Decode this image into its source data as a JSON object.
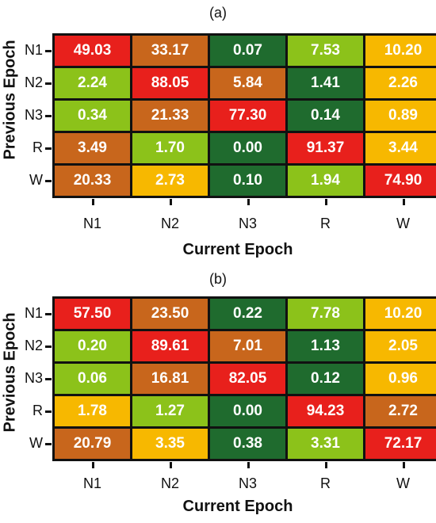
{
  "colors": {
    "red": "#e8201c",
    "orange": "#c8661c",
    "darkgreen": "#1f6b2e",
    "lightgreen": "#8cc21a",
    "yellow": "#f7b800"
  },
  "chart_data": [
    {
      "type": "heatmap",
      "panel_label": "(a)",
      "xlabel": "Current Epoch",
      "ylabel": "Previous Epoch",
      "x_categories": [
        "N1",
        "N2",
        "N3",
        "R",
        "W"
      ],
      "y_categories": [
        "N1",
        "N2",
        "N3",
        "R",
        "W"
      ],
      "values": [
        [
          49.03,
          33.17,
          0.07,
          7.53,
          10.2
        ],
        [
          2.24,
          88.05,
          5.84,
          1.41,
          2.26
        ],
        [
          0.34,
          21.33,
          77.3,
          0.14,
          0.89
        ],
        [
          3.49,
          1.7,
          0.0,
          91.37,
          3.44
        ],
        [
          20.33,
          2.73,
          0.1,
          1.94,
          74.9
        ]
      ],
      "labels": [
        [
          "49.03",
          "33.17",
          "0.07",
          "7.53",
          "10.20"
        ],
        [
          "2.24",
          "88.05",
          "5.84",
          "1.41",
          "2.26"
        ],
        [
          "0.34",
          "21.33",
          "77.30",
          "0.14",
          "0.89"
        ],
        [
          "3.49",
          "1.70",
          "0.00",
          "91.37",
          "3.44"
        ],
        [
          "20.33",
          "2.73",
          "0.10",
          "1.94",
          "74.90"
        ]
      ],
      "cell_colors": [
        [
          "red",
          "orange",
          "darkgreen",
          "lightgreen",
          "yellow"
        ],
        [
          "lightgreen",
          "red",
          "orange",
          "darkgreen",
          "yellow"
        ],
        [
          "lightgreen",
          "orange",
          "red",
          "darkgreen",
          "yellow"
        ],
        [
          "orange",
          "lightgreen",
          "darkgreen",
          "red",
          "yellow"
        ],
        [
          "orange",
          "yellow",
          "darkgreen",
          "lightgreen",
          "red"
        ]
      ]
    },
    {
      "type": "heatmap",
      "panel_label": "(b)",
      "xlabel": "Current Epoch",
      "ylabel": "Previous Epoch",
      "x_categories": [
        "N1",
        "N2",
        "N3",
        "R",
        "W"
      ],
      "y_categories": [
        "N1",
        "N2",
        "N3",
        "R",
        "W"
      ],
      "values": [
        [
          57.5,
          23.5,
          0.22,
          7.78,
          10.2
        ],
        [
          0.2,
          89.61,
          7.01,
          1.13,
          2.05
        ],
        [
          0.06,
          16.81,
          82.05,
          0.12,
          0.96
        ],
        [
          1.78,
          1.27,
          0.0,
          94.23,
          2.72
        ],
        [
          20.79,
          3.35,
          0.38,
          3.31,
          72.17
        ]
      ],
      "labels": [
        [
          "57.50",
          "23.50",
          "0.22",
          "7.78",
          "10.20"
        ],
        [
          "0.20",
          "89.61",
          "7.01",
          "1.13",
          "2.05"
        ],
        [
          "0.06",
          "16.81",
          "82.05",
          "0.12",
          "0.96"
        ],
        [
          "1.78",
          "1.27",
          "0.00",
          "94.23",
          "2.72"
        ],
        [
          "20.79",
          "3.35",
          "0.38",
          "3.31",
          "72.17"
        ]
      ],
      "cell_colors": [
        [
          "red",
          "orange",
          "darkgreen",
          "lightgreen",
          "yellow"
        ],
        [
          "lightgreen",
          "red",
          "orange",
          "darkgreen",
          "yellow"
        ],
        [
          "lightgreen",
          "orange",
          "red",
          "darkgreen",
          "yellow"
        ],
        [
          "yellow",
          "lightgreen",
          "darkgreen",
          "red",
          "orange"
        ],
        [
          "orange",
          "yellow",
          "darkgreen",
          "lightgreen",
          "red"
        ]
      ]
    }
  ]
}
